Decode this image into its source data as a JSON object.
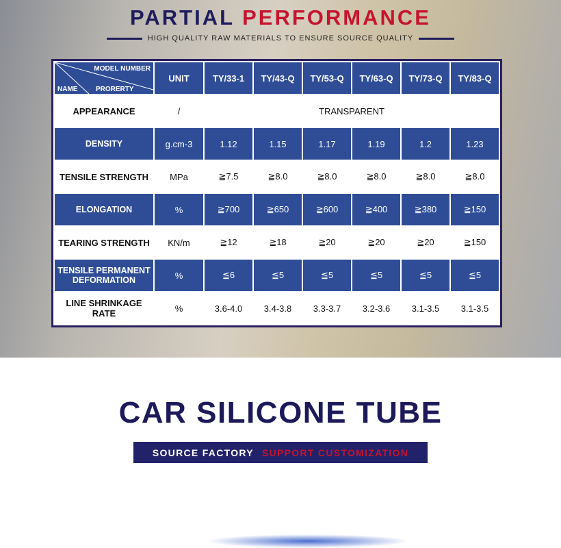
{
  "header": {
    "title_part1": "PARTIAL",
    "title_part2": "PERFORMANCE",
    "subtitle": "HIGH QUALITY RAW MATERIALS TO ENSURE SOURCE QUALITY"
  },
  "table": {
    "corner": {
      "top": "MODEL NUMBER",
      "left": "NAME",
      "middle": "PRORERTY"
    },
    "unit_header": "UNIT",
    "models": [
      "TY/33-1",
      "TY/43-Q",
      "TY/53-Q",
      "TY/63-Q",
      "TY/73-Q",
      "TY/83-Q"
    ],
    "rows": [
      {
        "name": "APPEARANCE",
        "unit": "/",
        "merged": "TRANSPARENT"
      },
      {
        "name": "DENSITY",
        "unit": "g.cm-3",
        "values": [
          "1.12",
          "1.15",
          "1.17",
          "1.19",
          "1.2",
          "1.23"
        ]
      },
      {
        "name": "TENSILE STRENGTH",
        "unit": "MPa",
        "values": [
          "≧7.5",
          "≧8.0",
          "≧8.0",
          "≧8.0",
          "≧8.0",
          "≧8.0"
        ]
      },
      {
        "name": "ELONGATION",
        "unit": "%",
        "values": [
          "≧700",
          "≧650",
          "≧600",
          "≧400",
          "≧380",
          "≧150"
        ]
      },
      {
        "name": "TEARING STRENGTH",
        "unit": "KN/m",
        "values": [
          "≧12",
          "≧18",
          "≧20",
          "≧20",
          "≧20",
          "≧150"
        ]
      },
      {
        "name": "TENSILE PERMANENT DEFORMATION",
        "unit": "%",
        "values": [
          "≦6",
          "≦5",
          "≦5",
          "≦5",
          "≦5",
          "≦5"
        ]
      },
      {
        "name": "LINE SHRINKAGE RATE",
        "unit": "%",
        "values": [
          "3.6-4.0",
          "3.4-3.8",
          "3.3-3.7",
          "3.2-3.6",
          "3.1-3.5",
          "3.1-3.5"
        ]
      }
    ]
  },
  "banner": {
    "title": "CAR SILICONE TUBE",
    "tag_left": "SOURCE FACTORY",
    "tag_right": "SUPPORT CUSTOMIZATION"
  }
}
